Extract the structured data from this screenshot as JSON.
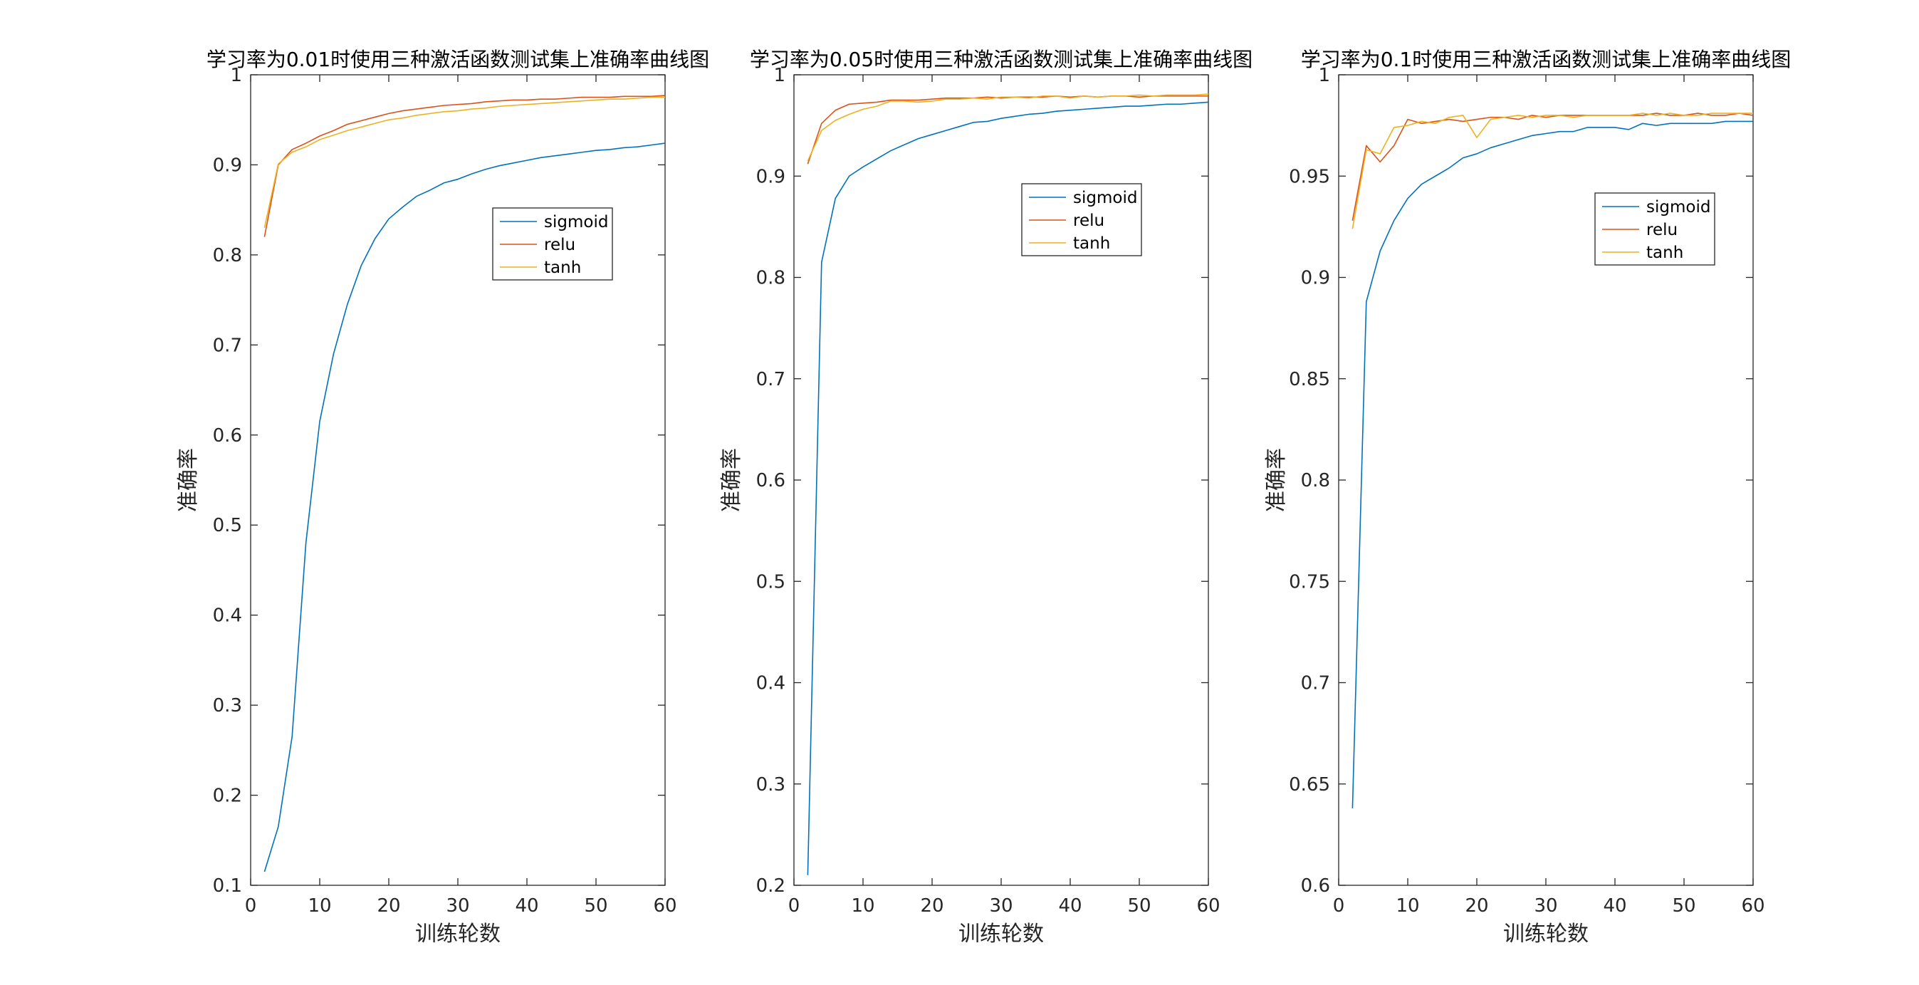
{
  "chart_data": [
    {
      "type": "line",
      "title": "学习率为0.01时使用三种激活函数测试集上准确率曲线图",
      "xlabel": "训练轮数",
      "ylabel": "准确率",
      "xlim": [
        0,
        60
      ],
      "ylim": [
        0.1,
        1
      ],
      "xticks": [
        0,
        10,
        20,
        30,
        40,
        50,
        60
      ],
      "yticks": [
        0.1,
        0.2,
        0.3,
        0.4,
        0.5,
        0.6,
        0.7,
        0.8,
        0.9,
        1
      ],
      "ytick_labels": [
        "0.1",
        "0.2",
        "0.3",
        "0.4",
        "0.5",
        "0.6",
        "0.7",
        "0.8",
        "0.9",
        "1"
      ],
      "grid": false,
      "legend_position": "upper-middle-right",
      "x": [
        2,
        4,
        6,
        8,
        10,
        12,
        14,
        16,
        18,
        20,
        22,
        24,
        26,
        28,
        30,
        32,
        34,
        36,
        38,
        40,
        42,
        44,
        46,
        48,
        50,
        52,
        54,
        56,
        58,
        60
      ],
      "series": [
        {
          "name": "sigmoid",
          "color": "#0072BD",
          "values": [
            0.115,
            0.165,
            0.265,
            0.48,
            0.615,
            0.69,
            0.745,
            0.788,
            0.818,
            0.84,
            0.853,
            0.865,
            0.872,
            0.88,
            0.884,
            0.89,
            0.895,
            0.899,
            0.902,
            0.905,
            0.908,
            0.91,
            0.912,
            0.914,
            0.916,
            0.917,
            0.919,
            0.92,
            0.922,
            0.924
          ]
        },
        {
          "name": "relu",
          "color": "#D95319",
          "values": [
            0.82,
            0.9,
            0.917,
            0.924,
            0.932,
            0.938,
            0.945,
            0.949,
            0.953,
            0.957,
            0.96,
            0.962,
            0.964,
            0.966,
            0.967,
            0.968,
            0.97,
            0.971,
            0.972,
            0.972,
            0.973,
            0.973,
            0.974,
            0.975,
            0.975,
            0.975,
            0.976,
            0.976,
            0.976,
            0.977
          ]
        },
        {
          "name": "tanh",
          "color": "#EDB120",
          "values": [
            0.83,
            0.901,
            0.914,
            0.92,
            0.928,
            0.933,
            0.938,
            0.942,
            0.946,
            0.95,
            0.952,
            0.955,
            0.957,
            0.959,
            0.96,
            0.962,
            0.963,
            0.965,
            0.966,
            0.967,
            0.968,
            0.969,
            0.97,
            0.971,
            0.972,
            0.973,
            0.973,
            0.974,
            0.975,
            0.975
          ]
        }
      ]
    },
    {
      "type": "line",
      "title": "学习率为0.05时使用三种激活函数测试集上准确率曲线图",
      "xlabel": "训练轮数",
      "ylabel": "准确率",
      "xlim": [
        0,
        60
      ],
      "ylim": [
        0.2,
        1
      ],
      "xticks": [
        0,
        10,
        20,
        30,
        40,
        50,
        60
      ],
      "yticks": [
        0.2,
        0.3,
        0.4,
        0.5,
        0.6,
        0.7,
        0.8,
        0.9,
        1
      ],
      "ytick_labels": [
        "0.2",
        "0.3",
        "0.4",
        "0.5",
        "0.6",
        "0.7",
        "0.8",
        "0.9",
        "1"
      ],
      "grid": false,
      "legend_position": "upper-middle-right",
      "x": [
        2,
        4,
        6,
        8,
        10,
        12,
        14,
        16,
        18,
        20,
        22,
        24,
        26,
        28,
        30,
        32,
        34,
        36,
        38,
        40,
        42,
        44,
        46,
        48,
        50,
        52,
        54,
        56,
        58,
        60
      ],
      "series": [
        {
          "name": "sigmoid",
          "color": "#0072BD",
          "values": [
            0.21,
            0.815,
            0.878,
            0.9,
            0.909,
            0.917,
            0.925,
            0.931,
            0.937,
            0.941,
            0.945,
            0.949,
            0.953,
            0.954,
            0.957,
            0.959,
            0.961,
            0.962,
            0.964,
            0.965,
            0.966,
            0.967,
            0.968,
            0.969,
            0.969,
            0.97,
            0.971,
            0.971,
            0.972,
            0.973
          ]
        },
        {
          "name": "relu",
          "color": "#D95319",
          "values": [
            0.912,
            0.952,
            0.965,
            0.971,
            0.972,
            0.973,
            0.975,
            0.975,
            0.975,
            0.976,
            0.977,
            0.977,
            0.977,
            0.978,
            0.977,
            0.978,
            0.978,
            0.978,
            0.979,
            0.978,
            0.979,
            0.978,
            0.979,
            0.979,
            0.978,
            0.979,
            0.979,
            0.979,
            0.979,
            0.979
          ]
        },
        {
          "name": "tanh",
          "color": "#EDB120",
          "values": [
            0.915,
            0.945,
            0.955,
            0.961,
            0.966,
            0.969,
            0.974,
            0.974,
            0.973,
            0.974,
            0.976,
            0.976,
            0.977,
            0.976,
            0.978,
            0.978,
            0.977,
            0.979,
            0.979,
            0.977,
            0.979,
            0.978,
            0.979,
            0.979,
            0.98,
            0.979,
            0.98,
            0.98,
            0.98,
            0.981
          ]
        }
      ]
    },
    {
      "type": "line",
      "title": "学习率为0.1时使用三种激活函数测试集上准确率曲线图",
      "xlabel": "训练轮数",
      "ylabel": "准确率",
      "xlim": [
        0,
        60
      ],
      "ylim": [
        0.6,
        1
      ],
      "xticks": [
        0,
        10,
        20,
        30,
        40,
        50,
        60
      ],
      "yticks": [
        0.6,
        0.65,
        0.7,
        0.75,
        0.8,
        0.85,
        0.9,
        0.95,
        1
      ],
      "ytick_labels": [
        "0.6",
        "0.65",
        "0.7",
        "0.75",
        "0.8",
        "0.85",
        "0.9",
        "0.95",
        "1"
      ],
      "grid": false,
      "legend_position": "upper-right",
      "x": [
        2,
        4,
        6,
        8,
        10,
        12,
        14,
        16,
        18,
        20,
        22,
        24,
        26,
        28,
        30,
        32,
        34,
        36,
        38,
        40,
        42,
        44,
        46,
        48,
        50,
        52,
        54,
        56,
        58,
        60
      ],
      "series": [
        {
          "name": "sigmoid",
          "color": "#0072BD",
          "values": [
            0.638,
            0.888,
            0.913,
            0.928,
            0.939,
            0.946,
            0.95,
            0.954,
            0.959,
            0.961,
            0.964,
            0.966,
            0.968,
            0.97,
            0.971,
            0.972,
            0.972,
            0.974,
            0.974,
            0.974,
            0.973,
            0.976,
            0.975,
            0.976,
            0.976,
            0.976,
            0.976,
            0.977,
            0.977,
            0.977
          ]
        },
        {
          "name": "relu",
          "color": "#D95319",
          "values": [
            0.928,
            0.965,
            0.957,
            0.965,
            0.978,
            0.976,
            0.977,
            0.978,
            0.977,
            0.978,
            0.979,
            0.979,
            0.978,
            0.98,
            0.979,
            0.98,
            0.98,
            0.98,
            0.98,
            0.98,
            0.98,
            0.98,
            0.981,
            0.98,
            0.98,
            0.981,
            0.98,
            0.98,
            0.981,
            0.98
          ]
        },
        {
          "name": "tanh",
          "color": "#EDB120",
          "values": [
            0.924,
            0.963,
            0.961,
            0.974,
            0.975,
            0.977,
            0.976,
            0.979,
            0.98,
            0.969,
            0.978,
            0.979,
            0.98,
            0.979,
            0.98,
            0.98,
            0.979,
            0.98,
            0.98,
            0.98,
            0.98,
            0.981,
            0.98,
            0.981,
            0.98,
            0.98,
            0.981,
            0.981,
            0.981,
            0.981
          ]
        }
      ]
    }
  ]
}
